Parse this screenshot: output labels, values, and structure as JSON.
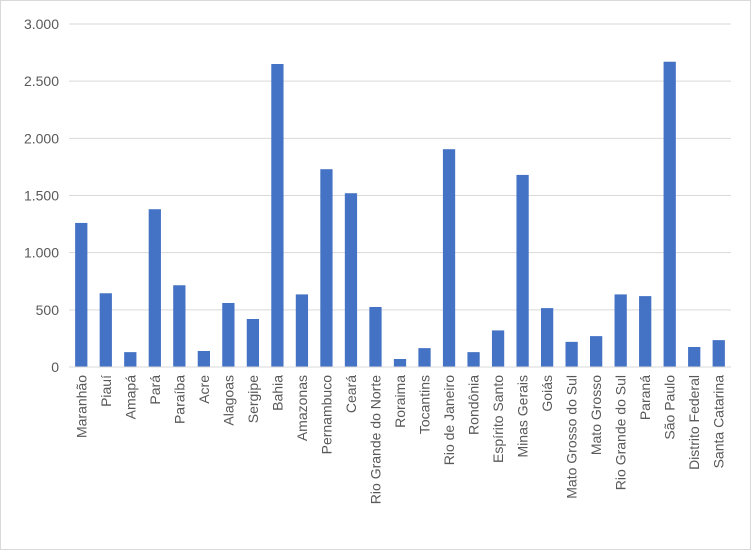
{
  "chart_data": {
    "type": "bar",
    "categories": [
      "Maranhão",
      "Piauí",
      "Amapá",
      "Pará",
      "Paraíba",
      "Acre",
      "Alagoas",
      "Sergipe",
      "Bahia",
      "Amazonas",
      "Pernambuco",
      "Ceará",
      "Rio Grande do Norte",
      "Roraima",
      "Tocantins",
      "Rio de Janeiro",
      "Rondônia",
      "Espírito Santo",
      "Minas Gerais",
      "Goiás",
      "Mato Grosso do Sul",
      "Mato Grosso",
      "Rio Grande do Sul",
      "Paraná",
      "São Paulo",
      "Distrito Federal",
      "Santa Catarina"
    ],
    "series": [
      {
        "values": [
          1260,
          645,
          130,
          1380,
          715,
          140,
          560,
          420,
          2650,
          635,
          1730,
          1520,
          525,
          70,
          165,
          1905,
          130,
          320,
          1680,
          515,
          220,
          270,
          635,
          620,
          2670,
          175,
          235
        ]
      }
    ],
    "ylim": [
      0,
      3000
    ],
    "yticks": [
      0,
      500,
      1000,
      1500,
      2000,
      2500,
      3000
    ],
    "ytick_labels": [
      "0",
      "500",
      "1.000",
      "1.500",
      "2.000",
      "2.500",
      "3.000"
    ],
    "grid": true,
    "legend": "none",
    "colors": {
      "bar": "#4472C4",
      "grid": "#d9d9d9",
      "text": "#595959"
    }
  }
}
